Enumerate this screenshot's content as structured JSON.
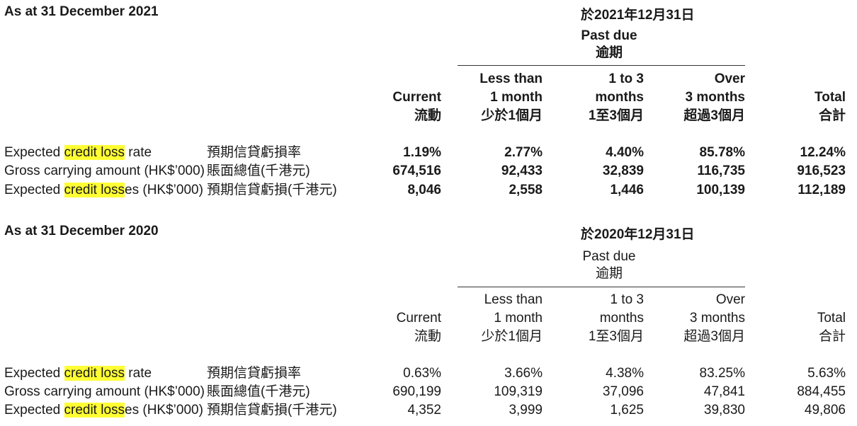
{
  "sections": [
    {
      "title": "As at 31 December 2021",
      "title_zh": "於2021年12月31日",
      "past_due": "Past due",
      "past_due_zh": "逾期",
      "columns": [
        {
          "en1": "",
          "en2": "Current",
          "zh": "流動"
        },
        {
          "en1": "Less than",
          "en2": "1 month",
          "zh": "少於1個月"
        },
        {
          "en1": "1 to 3",
          "en2": "months",
          "zh": "1至3個月"
        },
        {
          "en1": "Over",
          "en2": "3 months",
          "zh": "超過3個月"
        },
        {
          "en1": "",
          "en2": "Total",
          "zh": "合計"
        }
      ],
      "rows": [
        {
          "label_pre": "Expected ",
          "label_hl": "credit loss",
          "label_post": " rate",
          "label_zh": "預期信貸虧損率",
          "values": [
            "1.19%",
            "2.77%",
            "4.40%",
            "85.78%",
            "12.24%"
          ]
        },
        {
          "label_pre": "Gross carrying amount (HK$’000)",
          "label_hl": "",
          "label_post": "",
          "label_zh": "賬面總值(千港元)",
          "values": [
            "674,516",
            "92,433",
            "32,839",
            "116,735",
            "916,523"
          ]
        },
        {
          "label_pre": "Expected ",
          "label_hl": "credit loss",
          "label_post": "es (HK$’000)",
          "label_zh": "預期信貸虧損(千港元)",
          "values": [
            "8,046",
            "2,558",
            "1,446",
            "100,139",
            "112,189"
          ]
        }
      ]
    },
    {
      "title": "As at 31 December 2020",
      "title_zh": "於2020年12月31日",
      "past_due": "Past due",
      "past_due_zh": "逾期",
      "columns": [
        {
          "en1": "",
          "en2": "Current",
          "zh": "流動"
        },
        {
          "en1": "Less than",
          "en2": "1 month",
          "zh": "少於1個月"
        },
        {
          "en1": "1 to 3",
          "en2": "months",
          "zh": "1至3個月"
        },
        {
          "en1": "Over",
          "en2": "3 months",
          "zh": "超過3個月"
        },
        {
          "en1": "",
          "en2": "Total",
          "zh": "合計"
        }
      ],
      "rows": [
        {
          "label_pre": "Expected ",
          "label_hl": "credit loss",
          "label_post": " rate",
          "label_zh": "預期信貸虧損率",
          "values": [
            "0.63%",
            "3.66%",
            "4.38%",
            "83.25%",
            "5.63%"
          ]
        },
        {
          "label_pre": "Gross carrying amount (HK$’000)",
          "label_hl": "",
          "label_post": "",
          "label_zh": "賬面總值(千港元)",
          "values": [
            "690,199",
            "109,319",
            "37,096",
            "47,841",
            "884,455"
          ]
        },
        {
          "label_pre": "Expected ",
          "label_hl": "credit loss",
          "label_post": "es (HK$’000)",
          "label_zh": "預期信貸虧損(千港元)",
          "values": [
            "4,352",
            "3,999",
            "1,625",
            "39,830",
            "49,806"
          ]
        }
      ]
    }
  ],
  "highlight_color": "#ffff33"
}
